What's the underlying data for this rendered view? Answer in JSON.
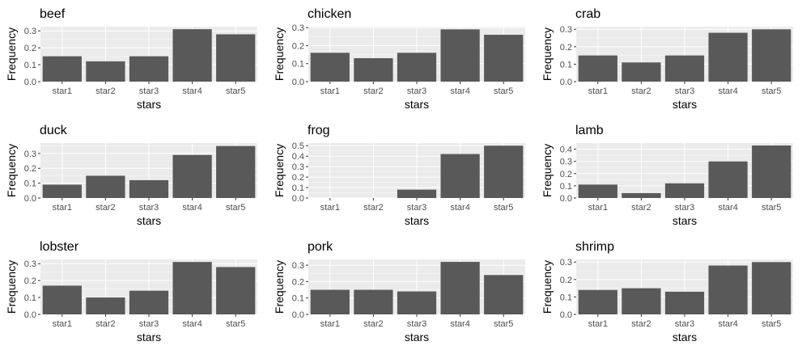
{
  "style": {
    "panel_bg": "#ebebeb",
    "grid_major": "#ffffff",
    "bar_fill": "#595959",
    "axis_text": "#4d4d4d",
    "title_text": "#000000"
  },
  "chart_data": [
    {
      "type": "bar",
      "title": "beef",
      "xlabel": "stars",
      "ylabel": "Frequency",
      "categories": [
        "star1",
        "star2",
        "star3",
        "star4",
        "star5"
      ],
      "values": [
        0.15,
        0.12,
        0.15,
        0.31,
        0.28
      ],
      "ylim": [
        0,
        0.325
      ],
      "yticks": [
        "0.0",
        "0.1",
        "0.2",
        "0.3"
      ],
      "grid": true
    },
    {
      "type": "bar",
      "title": "chicken",
      "xlabel": "stars",
      "ylabel": "Frequency",
      "categories": [
        "star1",
        "star2",
        "star3",
        "star4",
        "star5"
      ],
      "values": [
        0.16,
        0.13,
        0.16,
        0.29,
        0.26
      ],
      "ylim": [
        0,
        0.305
      ],
      "yticks": [
        "0.0",
        "0.1",
        "0.2",
        "0.3"
      ],
      "grid": true
    },
    {
      "type": "bar",
      "title": "crab",
      "xlabel": "stars",
      "ylabel": "Frequency",
      "categories": [
        "star1",
        "star2",
        "star3",
        "star4",
        "star5"
      ],
      "values": [
        0.15,
        0.11,
        0.15,
        0.28,
        0.3
      ],
      "ylim": [
        0,
        0.315
      ],
      "yticks": [
        "0.0",
        "0.1",
        "0.2",
        "0.3"
      ],
      "grid": true
    },
    {
      "type": "bar",
      "title": "duck",
      "xlabel": "stars",
      "ylabel": "Frequency",
      "categories": [
        "star1",
        "star2",
        "star3",
        "star4",
        "star5"
      ],
      "values": [
        0.09,
        0.15,
        0.12,
        0.29,
        0.35
      ],
      "ylim": [
        0,
        0.37
      ],
      "yticks": [
        "0.0",
        "0.1",
        "0.2",
        "0.3"
      ],
      "grid": true
    },
    {
      "type": "bar",
      "title": "frog",
      "xlabel": "stars",
      "ylabel": "Frequency",
      "categories": [
        "star1",
        "star2",
        "star3",
        "star4",
        "star5"
      ],
      "values": [
        0.0,
        0.0,
        0.08,
        0.42,
        0.5
      ],
      "ylim": [
        0,
        0.525
      ],
      "yticks": [
        "0.0",
        "0.1",
        "0.2",
        "0.3",
        "0.4",
        "0.5"
      ],
      "grid": true
    },
    {
      "type": "bar",
      "title": "lamb",
      "xlabel": "stars",
      "ylabel": "Frequency",
      "categories": [
        "star1",
        "star2",
        "star3",
        "star4",
        "star5"
      ],
      "values": [
        0.11,
        0.04,
        0.12,
        0.3,
        0.43
      ],
      "ylim": [
        0,
        0.45
      ],
      "yticks": [
        "0.0",
        "0.1",
        "0.2",
        "0.3",
        "0.4"
      ],
      "grid": true
    },
    {
      "type": "bar",
      "title": "lobster",
      "xlabel": "stars",
      "ylabel": "Frequency",
      "categories": [
        "star1",
        "star2",
        "star3",
        "star4",
        "star5"
      ],
      "values": [
        0.17,
        0.1,
        0.14,
        0.31,
        0.28
      ],
      "ylim": [
        0,
        0.325
      ],
      "yticks": [
        "0.0",
        "0.1",
        "0.2",
        "0.3"
      ],
      "grid": true
    },
    {
      "type": "bar",
      "title": "pork",
      "xlabel": "stars",
      "ylabel": "Frequency",
      "categories": [
        "star1",
        "star2",
        "star3",
        "star4",
        "star5"
      ],
      "values": [
        0.15,
        0.15,
        0.14,
        0.32,
        0.24
      ],
      "ylim": [
        0,
        0.335
      ],
      "yticks": [
        "0.0",
        "0.1",
        "0.2",
        "0.3"
      ],
      "grid": true
    },
    {
      "type": "bar",
      "title": "shrimp",
      "xlabel": "stars",
      "ylabel": "Frequency",
      "categories": [
        "star1",
        "star2",
        "star3",
        "star4",
        "star5"
      ],
      "values": [
        0.14,
        0.15,
        0.13,
        0.28,
        0.3
      ],
      "ylim": [
        0,
        0.315
      ],
      "yticks": [
        "0.0",
        "0.1",
        "0.2",
        "0.3"
      ],
      "grid": true
    }
  ]
}
